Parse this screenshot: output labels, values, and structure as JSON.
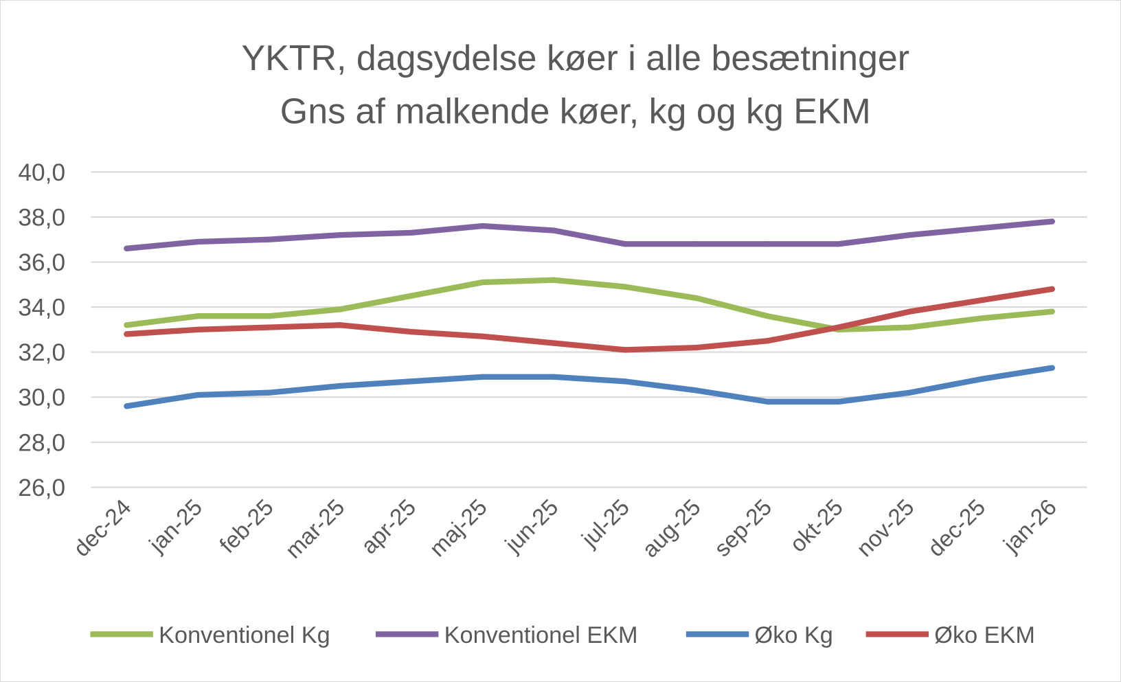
{
  "chart_data": {
    "type": "line",
    "title": [
      "YKTR, dagsydelse køer i alle besætninger",
      "Gns af malkende køer, kg og kg EKM"
    ],
    "xlabel": "",
    "ylabel": "",
    "categories": [
      "dec-24",
      "jan-25",
      "feb-25",
      "mar-25",
      "apr-25",
      "maj-25",
      "jun-25",
      "jul-25",
      "aug-25",
      "sep-25",
      "okt-25",
      "nov-25",
      "dec-25",
      "jan-26"
    ],
    "ylim": [
      26,
      40
    ],
    "yticks": [
      "26,0",
      "28,0",
      "30,0",
      "32,0",
      "34,0",
      "36,0",
      "38,0",
      "40,0"
    ],
    "grid": true,
    "legend_position": "bottom",
    "series": [
      {
        "name": "Konventionel Kg",
        "color": "#9bbb59",
        "values": [
          33.2,
          33.6,
          33.6,
          33.9,
          34.5,
          35.1,
          35.2,
          34.9,
          34.4,
          33.6,
          33.0,
          33.1,
          33.5,
          33.8
        ]
      },
      {
        "name": "Konventionel EKM",
        "color": "#8064a2",
        "values": [
          36.6,
          36.9,
          37.0,
          37.2,
          37.3,
          37.6,
          37.4,
          36.8,
          36.8,
          36.8,
          36.8,
          37.2,
          37.5,
          37.8
        ]
      },
      {
        "name": "Øko Kg",
        "color": "#4f81bd",
        "values": [
          29.6,
          30.1,
          30.2,
          30.5,
          30.7,
          30.9,
          30.9,
          30.7,
          30.3,
          29.8,
          29.8,
          30.2,
          30.8,
          31.3
        ]
      },
      {
        "name": "Øko EKM",
        "color": "#c0504d",
        "values": [
          32.8,
          33.0,
          33.1,
          33.2,
          32.9,
          32.7,
          32.4,
          32.1,
          32.2,
          32.5,
          33.1,
          33.8,
          34.3,
          34.8
        ]
      }
    ]
  }
}
